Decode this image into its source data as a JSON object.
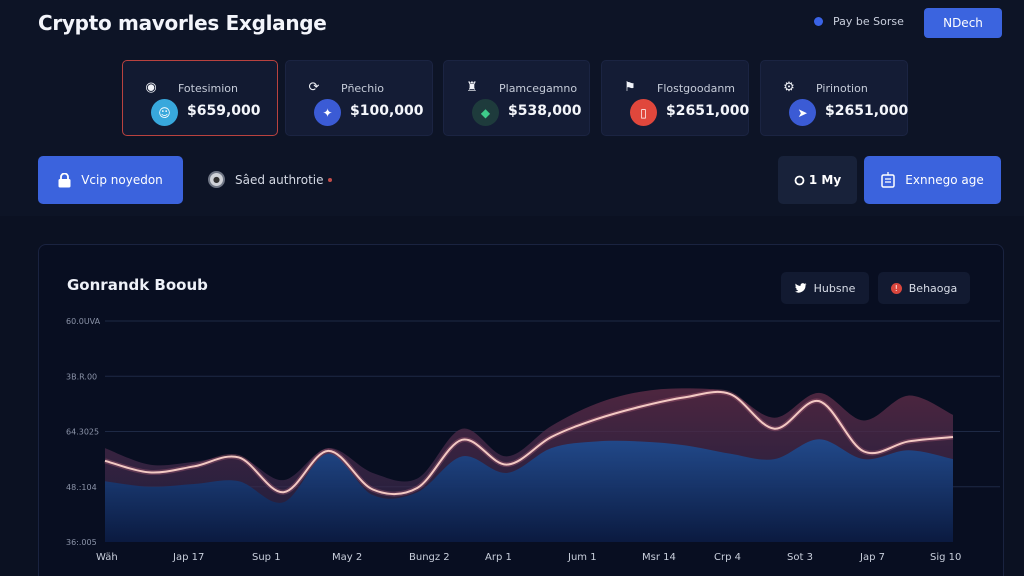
{
  "header": {
    "title": "Crypto mavorles Exglange",
    "status_text": "Pay be Sorse",
    "status_color": "#3a63e6",
    "action_label": "NDech"
  },
  "cards": [
    {
      "icon": "target-icon",
      "glyph": "◉",
      "label": "Fotesimion",
      "value": "$659,000",
      "avatar_color": "#38a8dc",
      "avatar_glyph": "☺",
      "selected": true
    },
    {
      "icon": "chat-icon",
      "glyph": "⟳",
      "label": "Pñechio",
      "value": "$100,000",
      "avatar_color": "#3b5bd5",
      "avatar_glyph": "✦",
      "selected": false
    },
    {
      "icon": "robot-icon",
      "glyph": "♜",
      "label": "Plamcegamno",
      "value": "$538,000",
      "avatar_color": "#1e3b3c",
      "avatar_glyph": "◆",
      "selected": false
    },
    {
      "icon": "flag-icon",
      "glyph": "⚑",
      "label": "Flostgoodanm",
      "value": "$2651,000",
      "avatar_color": "#e0473c",
      "avatar_glyph": "▯",
      "selected": false
    },
    {
      "icon": "gear-icon",
      "glyph": "⚙",
      "label": "Pirinotion",
      "value": "$2651,000",
      "avatar_color": "#3b5bd5",
      "avatar_glyph": "➤",
      "selected": false
    }
  ],
  "actions": {
    "primary_label": "Vcip noyedon",
    "saved_label": "Sâed authrotie",
    "timeframe_label": "1 My",
    "exchange_label": "Exnnego age"
  },
  "chart_panel": {
    "title": "Gonrandk Booub",
    "chip_1": "Hubsne",
    "chip_2": "Behaoga"
  },
  "chart_data": {
    "type": "area",
    "title": "Gonrandk Booub",
    "xlabel": "",
    "ylabel": "",
    "y_tick_labels": [
      "60.0UVA",
      "3B.R.00",
      "64.3025",
      "48.:104",
      "36:.005"
    ],
    "x_tick_labels": [
      "Wäh",
      "Jap 17",
      "Sup 1",
      "May 2",
      "Bungz 2",
      "Arp 1",
      "Jum 1",
      "Msr 14",
      "Crp 4",
      "Sot 3",
      "Jap 7",
      "Sig 10"
    ],
    "ylim": [
      0,
      4
    ],
    "grid": true,
    "legend": "none",
    "series": [
      {
        "name": "line",
        "color": "#f3c9c3",
        "values": [
          1.47,
          1.26,
          1.37,
          1.53,
          0.9,
          1.65,
          0.95,
          0.98,
          1.85,
          1.4,
          1.9,
          2.22,
          2.45,
          2.62,
          2.68,
          2.05,
          2.55,
          1.64,
          1.82,
          1.9
        ]
      },
      {
        "name": "upper-band",
        "color": "#5a2f4a",
        "values": [
          1.7,
          1.4,
          1.45,
          1.55,
          1.12,
          1.7,
          1.25,
          1.15,
          2.05,
          1.55,
          2.1,
          2.5,
          2.72,
          2.78,
          2.7,
          2.25,
          2.7,
          2.2,
          2.65,
          2.3
        ]
      },
      {
        "name": "blue-area",
        "color": "#1c3f7a",
        "values": [
          1.1,
          1.0,
          1.05,
          1.1,
          0.72,
          1.6,
          0.85,
          0.9,
          1.55,
          1.25,
          1.7,
          1.82,
          1.82,
          1.75,
          1.6,
          1.5,
          1.86,
          1.5,
          1.66,
          1.5
        ]
      }
    ]
  }
}
